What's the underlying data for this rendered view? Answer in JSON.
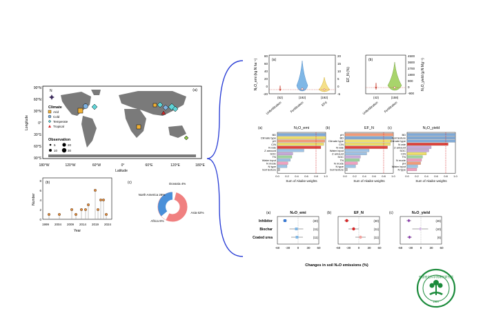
{
  "map": {
    "panel": "(a)",
    "yticks": [
      "90°N",
      "60°N",
      "30°N",
      "0°",
      "30°S",
      "60°S",
      "90°S"
    ],
    "xticks": [
      "180°W",
      "120°W",
      "60°W",
      "0°",
      "60°E",
      "120°E",
      "180°E"
    ],
    "ylabel": "Longitude",
    "xlabel": "Latitude",
    "north": "N",
    "climate_title": "Climate",
    "climate": [
      "Arid",
      "Cold",
      "Temperate",
      "Tropical"
    ],
    "obs_title": "Observation",
    "obs": [
      "5",
      "10",
      "20",
      "30"
    ],
    "colors": {
      "arid": "#f2b134",
      "cold": "#7fb2e0",
      "temperate": "#5fd3d6",
      "tropical": "#d62728"
    }
  },
  "timeline": {
    "panel": "(b)",
    "ylabel": "Number",
    "xlabel": "Year",
    "xticks": [
      "1999",
      "2004",
      "2009",
      "2014",
      "2019",
      "2024"
    ],
    "yticks": [
      "0",
      "2",
      "4",
      "6",
      "8"
    ]
  },
  "donut": {
    "panel": "(c)",
    "labels": [
      "Oceania\n4%",
      "North America\n28%",
      "Asia\n62%",
      "Africa\n6%"
    ]
  },
  "violin": {
    "a": {
      "panel": "(a)",
      "ylabel": "N₂O_emi (kg N ha⁻¹)",
      "ylabel2": "EF_N (%)",
      "yticks": [
        "-20",
        "0",
        "20",
        "40",
        "60",
        "80"
      ],
      "y2ticks": [
        "-5",
        "0",
        "5",
        "10",
        "15",
        "20"
      ],
      "groups": [
        "Unfertilization",
        "Fertilization",
        "EFd"
      ],
      "n": [
        "(52)",
        "(192)",
        "(192)"
      ]
    },
    "b": {
      "panel": "(b)",
      "ylabel": "N₂O_yield (g N Mg⁻¹)",
      "yticks": [
        "4500",
        "3600",
        "2700",
        "1800",
        "900",
        "0",
        "-900"
      ],
      "groups": [
        "Unfertilization",
        "Fertilization"
      ],
      "n": [
        "(42)",
        "(158)"
      ]
    }
  },
  "importance": {
    "xlabel": "Sum of Akaike weights",
    "xticks": [
      "0.0",
      "0.2",
      "0.4",
      "0.6",
      "0.8",
      "1.0"
    ],
    "panels": [
      {
        "panel": "(a)",
        "title": "N₂O_emi",
        "labels": [
          "BD",
          "Climate type",
          "pH",
          "C/N",
          "N rate",
          "Z amount",
          "SOC",
          "TN",
          "Water input",
          "N mode",
          "N type",
          "Soil texture"
        ]
      },
      {
        "panel": "(b)",
        "title": "EF_N",
        "labels": [
          "pH",
          "BD",
          "Climate type",
          "C/N",
          "N rate",
          "Water input",
          "Z amount",
          "SOC",
          "TN",
          "N mode",
          "N type",
          "Soil texture"
        ]
      },
      {
        "panel": "(c)",
        "title": "N₂O_yield",
        "labels": [
          "BD",
          "Soil texture",
          "Climate type",
          "N rate",
          "Z amount",
          "SOC",
          "C/N",
          "TN",
          "N mode",
          "pH",
          "Water input",
          "N type"
        ]
      }
    ]
  },
  "forest": {
    "rows": [
      "Inhibitor",
      "Biochar",
      "Coated urea"
    ],
    "xticks": [
      "-60",
      "-30",
      "0",
      "30",
      "60"
    ],
    "xlabel": "Changes in soil N₂O emissions (%)",
    "panels": [
      {
        "panel": "(a)",
        "title": "N₂O_emi",
        "n": [
          "(30)",
          "(11)",
          "(11)"
        ]
      },
      {
        "panel": "(b)",
        "title": "EF_N",
        "n": [
          "(30)",
          "(11)",
          "(11)"
        ]
      },
      {
        "panel": "(c)",
        "title": "N₂O_yield",
        "n": [
          "(26)",
          "(10)",
          "(6)"
        ]
      }
    ]
  },
  "logo": {
    "text": "中国农业科学院棉花研究所",
    "year": "1957"
  }
}
